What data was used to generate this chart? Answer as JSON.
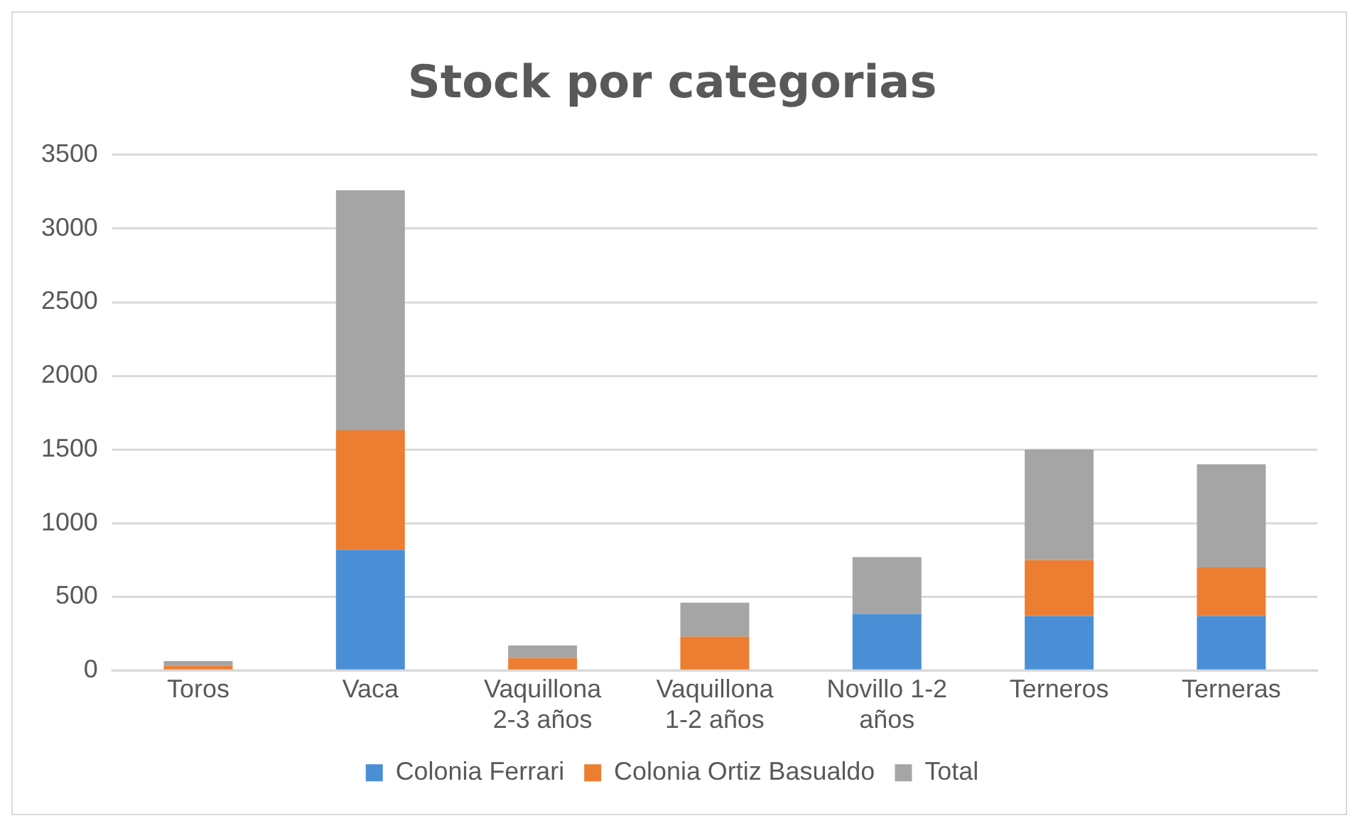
{
  "chart_data": {
    "type": "bar",
    "title": "Stock por categorias",
    "stacked": true,
    "categories": [
      "Toros",
      "Vaca",
      "Vaquillona 2-3 años",
      "Vaquillona 1-2 años",
      "Novillo 1-2 años",
      "Terneros",
      "Terneras"
    ],
    "series": [
      {
        "name": "Colonia Ferrari",
        "color": "#4a8fd6",
        "values": [
          0,
          820,
          0,
          0,
          385,
          370,
          370
        ]
      },
      {
        "name": "Colonia Ortiz Basualdo",
        "color": "#ed7d31",
        "values": [
          32,
          810,
          85,
          230,
          0,
          380,
          330
        ]
      },
      {
        "name": "Total",
        "color": "#a5a5a5",
        "values": [
          32,
          1630,
          85,
          230,
          385,
          750,
          700
        ]
      }
    ],
    "ylim": [
      0,
      3500
    ],
    "yticks": [
      0,
      500,
      1000,
      1500,
      2000,
      2500,
      3000,
      3500
    ],
    "grid": "y",
    "legend": "bottom"
  }
}
